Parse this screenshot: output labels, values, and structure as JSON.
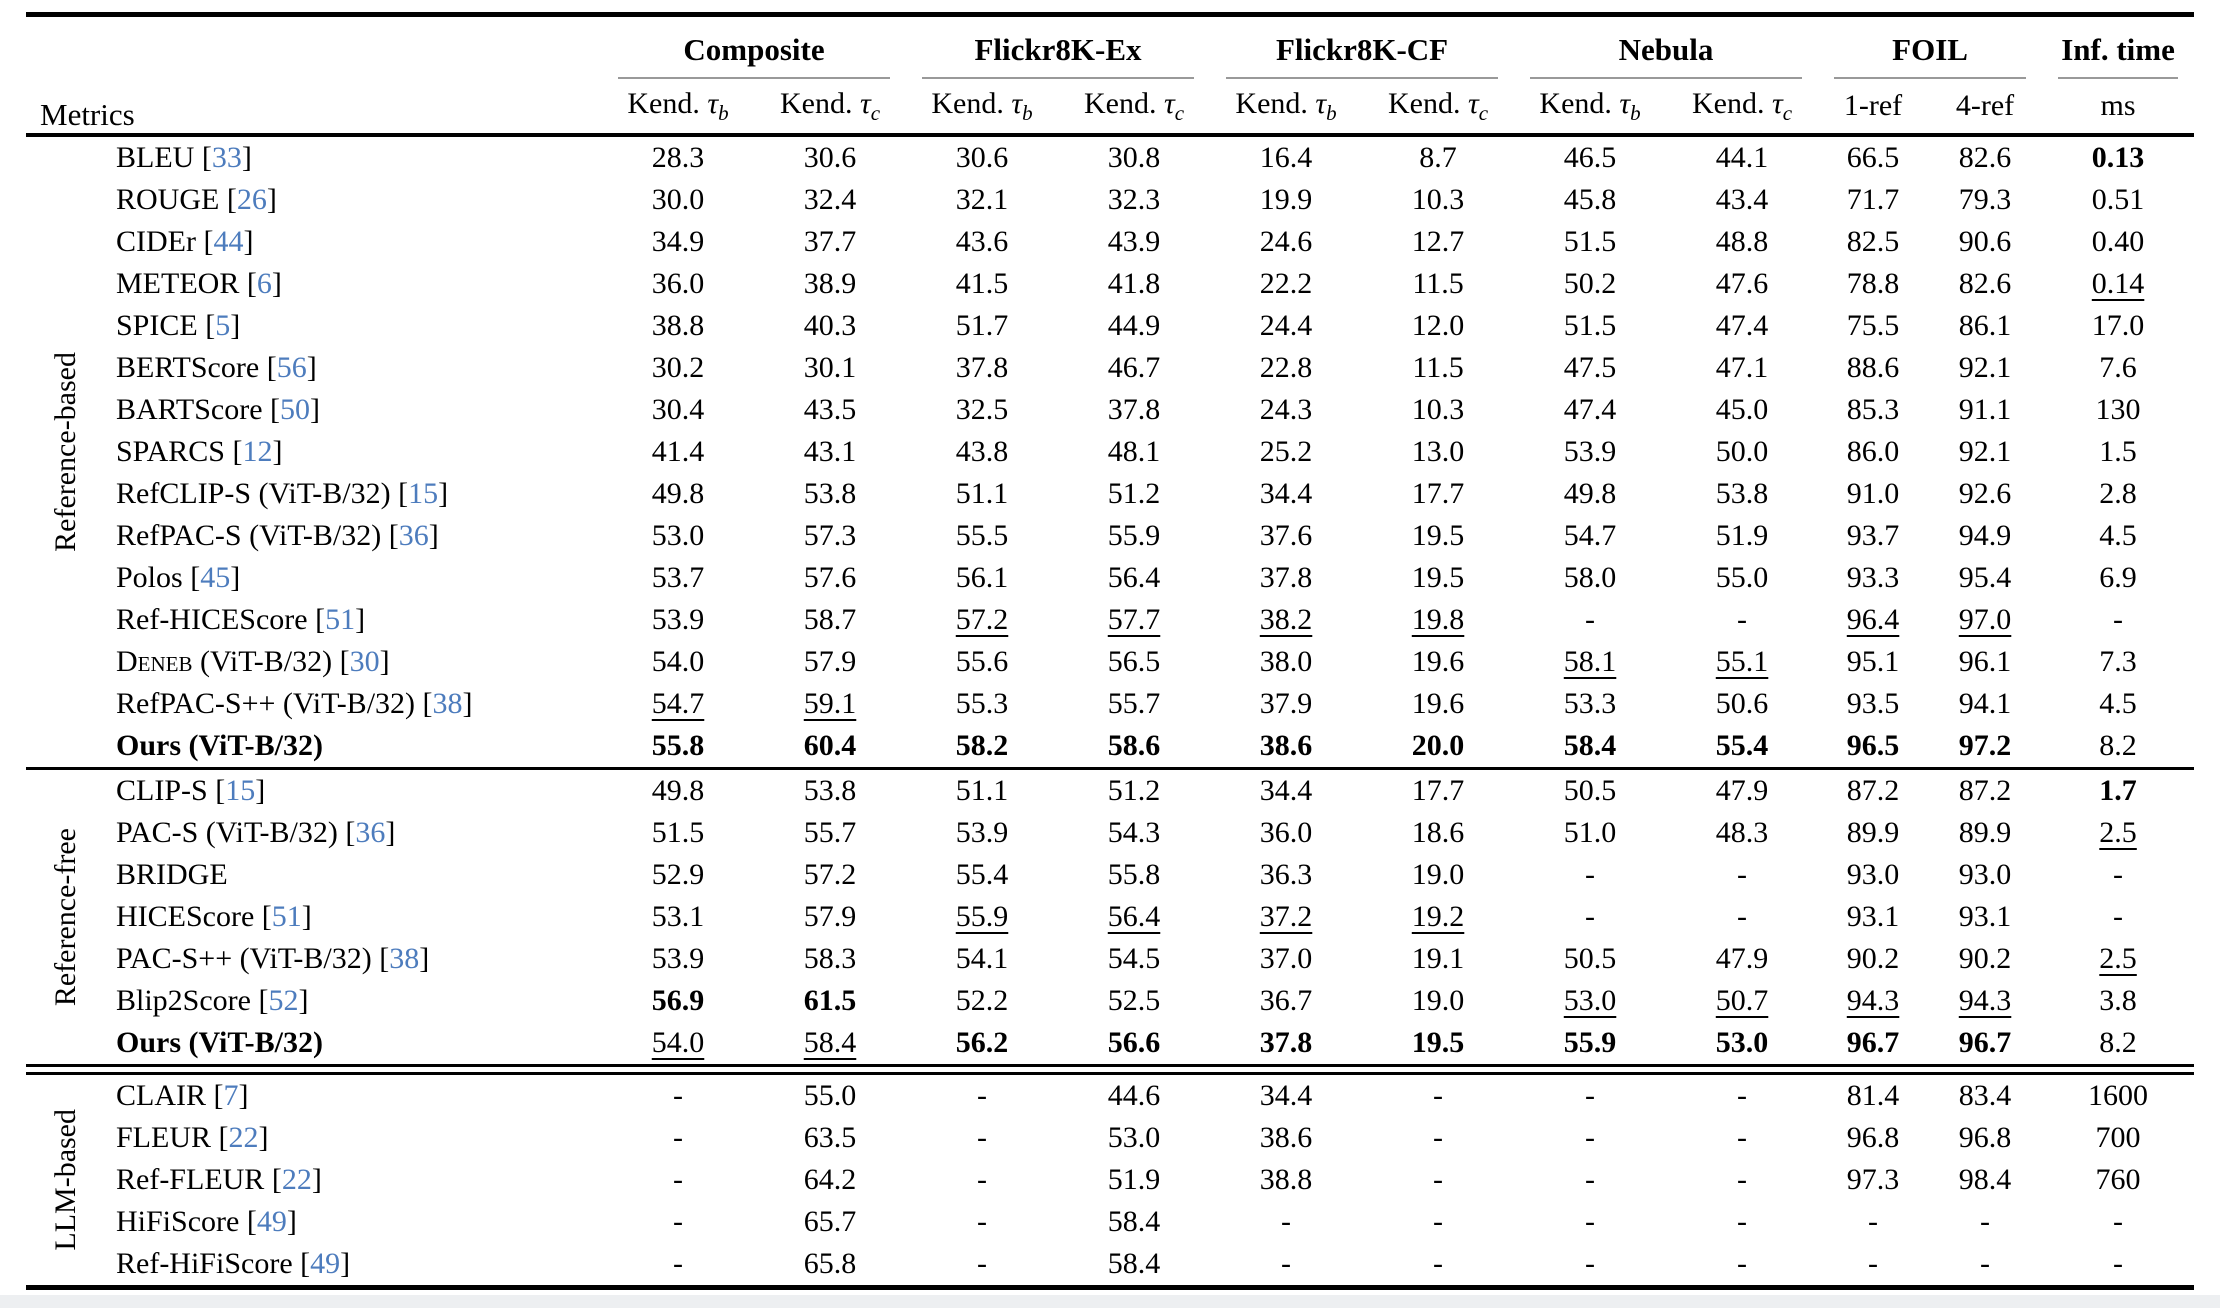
{
  "colors": {
    "citation_blue": "#4d7cbd",
    "group_rule_gray": "#999999"
  },
  "table": {
    "metrics_header": "Metrics",
    "groups": [
      {
        "label": "Composite"
      },
      {
        "label": "Flickr8K-Ex"
      },
      {
        "label": "Flickr8K-CF"
      },
      {
        "label": "Nebula"
      },
      {
        "label": "FOIL"
      },
      {
        "label": "Inf. time"
      }
    ],
    "subcols": [
      {
        "prefix": "Kend. ",
        "symbol": "τ",
        "sub": "b"
      },
      {
        "prefix": "Kend. ",
        "symbol": "τ",
        "sub": "c"
      },
      {
        "prefix": "Kend. ",
        "symbol": "τ",
        "sub": "b"
      },
      {
        "prefix": "Kend. ",
        "symbol": "τ",
        "sub": "c"
      },
      {
        "prefix": "Kend. ",
        "symbol": "τ",
        "sub": "b"
      },
      {
        "prefix": "Kend. ",
        "symbol": "τ",
        "sub": "c"
      },
      {
        "prefix": "Kend. ",
        "symbol": "τ",
        "sub": "b"
      },
      {
        "prefix": "Kend. ",
        "symbol": "τ",
        "sub": "c"
      },
      {
        "plain": "1-ref"
      },
      {
        "plain": "4-ref"
      },
      {
        "plain": "ms"
      }
    ],
    "sections": [
      {
        "label": "Reference-based",
        "rows": [
          {
            "name": "BLEU",
            "cite": "33",
            "cells": [
              "28.3",
              "30.6",
              "30.6",
              "30.8",
              "16.4",
              "8.7",
              "46.5",
              "44.1",
              "66.5",
              "82.6",
              "b:0.13"
            ]
          },
          {
            "name": "ROUGE",
            "cite": "26",
            "cells": [
              "30.0",
              "32.4",
              "32.1",
              "32.3",
              "19.9",
              "10.3",
              "45.8",
              "43.4",
              "71.7",
              "79.3",
              "0.51"
            ]
          },
          {
            "name": "CIDEr",
            "cite": "44",
            "cells": [
              "34.9",
              "37.7",
              "43.6",
              "43.9",
              "24.6",
              "12.7",
              "51.5",
              "48.8",
              "82.5",
              "90.6",
              "0.40"
            ]
          },
          {
            "name": "METEOR",
            "cite": "6",
            "cells": [
              "36.0",
              "38.9",
              "41.5",
              "41.8",
              "22.2",
              "11.5",
              "50.2",
              "47.6",
              "78.8",
              "82.6",
              "u:0.14"
            ]
          },
          {
            "name": "SPICE",
            "cite": "5",
            "cells": [
              "38.8",
              "40.3",
              "51.7",
              "44.9",
              "24.4",
              "12.0",
              "51.5",
              "47.4",
              "75.5",
              "86.1",
              "17.0"
            ]
          },
          {
            "name": "BERTScore",
            "cite": "56",
            "cells": [
              "30.2",
              "30.1",
              "37.8",
              "46.7",
              "22.8",
              "11.5",
              "47.5",
              "47.1",
              "88.6",
              "92.1",
              "7.6"
            ]
          },
          {
            "name": "BARTScore",
            "cite": "50",
            "cells": [
              "30.4",
              "43.5",
              "32.5",
              "37.8",
              "24.3",
              "10.3",
              "47.4",
              "45.0",
              "85.3",
              "91.1",
              "130"
            ]
          },
          {
            "name": "SPARCS",
            "cite": "12",
            "cells": [
              "41.4",
              "43.1",
              "43.8",
              "48.1",
              "25.2",
              "13.0",
              "53.9",
              "50.0",
              "86.0",
              "92.1",
              "1.5"
            ]
          },
          {
            "name": "RefCLIP-S (ViT-B/32)",
            "cite": "15",
            "cells": [
              "49.8",
              "53.8",
              "51.1",
              "51.2",
              "34.4",
              "17.7",
              "49.8",
              "53.8",
              "91.0",
              "92.6",
              "2.8"
            ]
          },
          {
            "name": "RefPAC-S (ViT-B/32)",
            "cite": "36",
            "cells": [
              "53.0",
              "57.3",
              "55.5",
              "55.9",
              "37.6",
              "19.5",
              "54.7",
              "51.9",
              "93.7",
              "94.9",
              "4.5"
            ]
          },
          {
            "name": "Polos",
            "cite": "45",
            "cells": [
              "53.7",
              "57.6",
              "56.1",
              "56.4",
              "37.8",
              "19.5",
              "58.0",
              "55.0",
              "93.3",
              "95.4",
              "6.9"
            ]
          },
          {
            "name": "Ref-HICEScore",
            "cite": "51",
            "cells": [
              "53.9",
              "58.7",
              "u:57.2",
              "u:57.7",
              "u:38.2",
              "u:19.8",
              "-",
              "-",
              "u:96.4",
              "u:97.0",
              "-"
            ]
          },
          {
            "sc": "Deneb",
            "name": " (ViT-B/32)",
            "cite": "30",
            "cells": [
              "54.0",
              "57.9",
              "55.6",
              "56.5",
              "38.0",
              "19.6",
              "u:58.1",
              "u:55.1",
              "95.1",
              "96.1",
              "7.3"
            ]
          },
          {
            "name": "RefPAC-S++ (ViT-B/32)",
            "cite": "38",
            "cells": [
              "u:54.7",
              "u:59.1",
              "55.3",
              "55.7",
              "37.9",
              "19.6",
              "53.3",
              "50.6",
              "93.5",
              "94.1",
              "4.5"
            ]
          },
          {
            "name": "Ours (ViT-B/32)",
            "bold": true,
            "cells": [
              "b:55.8",
              "b:60.4",
              "b:58.2",
              "b:58.6",
              "b:38.6",
              "b:20.0",
              "b:58.4",
              "b:55.4",
              "b:96.5",
              "b:97.2",
              "8.2"
            ]
          }
        ]
      },
      {
        "label": "Reference-free",
        "rows": [
          {
            "name": "CLIP-S",
            "cite": "15",
            "cells": [
              "49.8",
              "53.8",
              "51.1",
              "51.2",
              "34.4",
              "17.7",
              "50.5",
              "47.9",
              "87.2",
              "87.2",
              "b:1.7"
            ]
          },
          {
            "name": "PAC-S (ViT-B/32)",
            "cite": "36",
            "cells": [
              "51.5",
              "55.7",
              "53.9",
              "54.3",
              "36.0",
              "18.6",
              "51.0",
              "48.3",
              "89.9",
              "89.9",
              "u:2.5"
            ]
          },
          {
            "name": "BRIDGE",
            "cells": [
              "52.9",
              "57.2",
              "55.4",
              "55.8",
              "36.3",
              "19.0",
              "-",
              "-",
              "93.0",
              "93.0",
              "-"
            ]
          },
          {
            "name": "HICEScore",
            "cite": "51",
            "cells": [
              "53.1",
              "57.9",
              "u:55.9",
              "u:56.4",
              "u:37.2",
              "u:19.2",
              "-",
              "-",
              "93.1",
              "93.1",
              "-"
            ]
          },
          {
            "name": "PAC-S++ (ViT-B/32)",
            "cite": "38",
            "cells": [
              "53.9",
              "58.3",
              "54.1",
              "54.5",
              "37.0",
              "19.1",
              "50.5",
              "47.9",
              "90.2",
              "90.2",
              "u:2.5"
            ]
          },
          {
            "name": "Blip2Score",
            "cite": "52",
            "cells": [
              "b:56.9",
              "b:61.5",
              "52.2",
              "52.5",
              "36.7",
              "19.0",
              "u:53.0",
              "u:50.7",
              "u:94.3",
              "u:94.3",
              "3.8"
            ]
          },
          {
            "name": "Ours (ViT-B/32)",
            "bold": true,
            "cells": [
              "u:54.0",
              "u:58.4",
              "b:56.2",
              "b:56.6",
              "b:37.8",
              "b:19.5",
              "b:55.9",
              "b:53.0",
              "b:96.7",
              "b:96.7",
              "8.2"
            ]
          }
        ]
      },
      {
        "label": "LLM-based",
        "rows": [
          {
            "name": "CLAIR",
            "cite": "7",
            "cells": [
              "-",
              "55.0",
              "-",
              "44.6",
              "34.4",
              "-",
              "-",
              "-",
              "81.4",
              "83.4",
              "1600"
            ]
          },
          {
            "name": "FLEUR",
            "cite": "22",
            "cells": [
              "-",
              "63.5",
              "-",
              "53.0",
              "38.6",
              "-",
              "-",
              "-",
              "96.8",
              "96.8",
              "700"
            ]
          },
          {
            "name": "Ref-FLEUR",
            "cite": "22",
            "cells": [
              "-",
              "64.2",
              "-",
              "51.9",
              "38.8",
              "-",
              "-",
              "-",
              "97.3",
              "98.4",
              "760"
            ]
          },
          {
            "name": "HiFiScore",
            "cite": "49",
            "cells": [
              "-",
              "65.7",
              "-",
              "58.4",
              "-",
              "-",
              "-",
              "-",
              "-",
              "-",
              "-"
            ]
          },
          {
            "name": "Ref-HiFiScore",
            "cite": "49",
            "cells": [
              "-",
              "65.8",
              "-",
              "58.4",
              "-",
              "-",
              "-",
              "-",
              "-",
              "-",
              "-"
            ]
          }
        ]
      }
    ]
  }
}
